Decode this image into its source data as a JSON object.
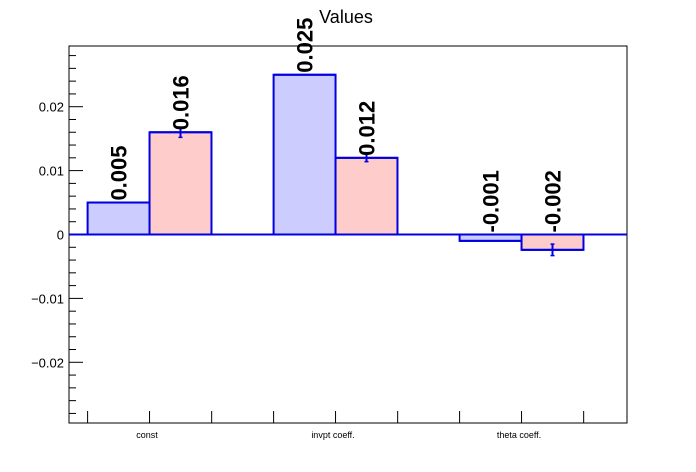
{
  "chart_data": {
    "type": "bar",
    "title": "Values",
    "categories": [
      "const",
      "invpt coeff.",
      "theta coeff."
    ],
    "series": [
      {
        "values": [
          0.005,
          0.025,
          -0.001
        ],
        "labels": [
          "0.005",
          "0.025",
          "-0.001"
        ],
        "errors": [
          0,
          0,
          0
        ],
        "color": "#ccccff"
      },
      {
        "values": [
          0.016,
          0.012,
          -0.0024
        ],
        "labels": [
          "0.016",
          "0.012",
          "-0.002"
        ],
        "errors": [
          0.0008,
          0.0006,
          0.0009
        ],
        "color": "#ffcccc"
      }
    ],
    "line_color": "#0000e0",
    "ylim": [
      -0.0295,
      0.0295
    ],
    "yticks": [
      -0.02,
      -0.01,
      0,
      0.01,
      0.02
    ],
    "ytick_labels": [
      "−0.02",
      "−0.01",
      "0",
      "0.01",
      "0.02"
    ],
    "xlabel": "",
    "ylabel": "",
    "grid": false,
    "legend": "none"
  }
}
